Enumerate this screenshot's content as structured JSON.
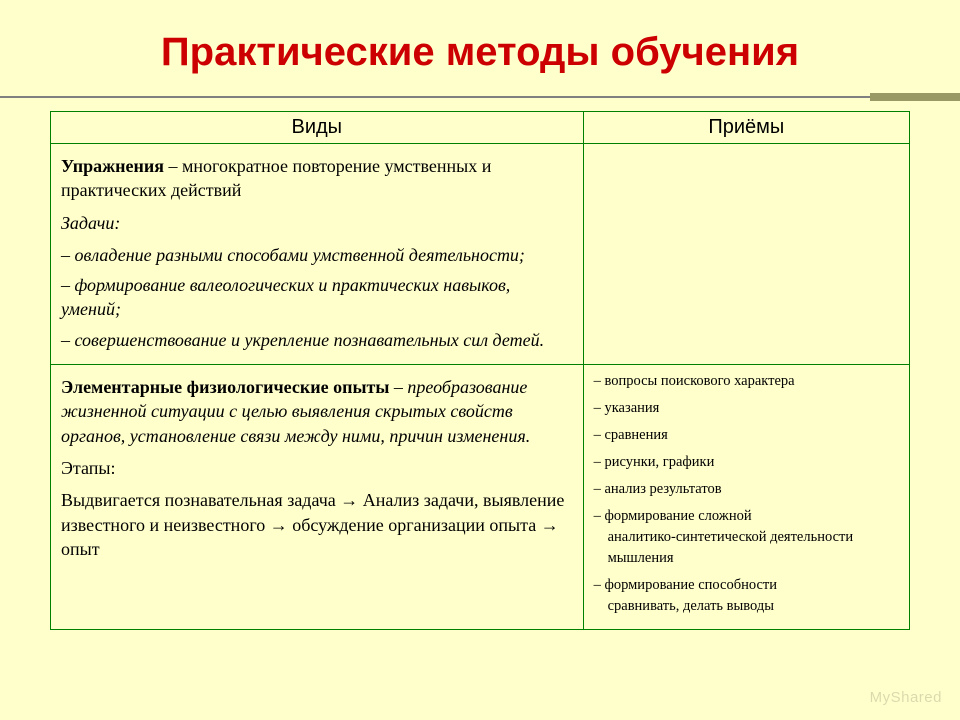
{
  "colors": {
    "background": "#ffffcc",
    "title": "#cc0000",
    "border": "#008000",
    "rule": "#808080",
    "accent": "#999966"
  },
  "title": "Практические методы обучения",
  "headers": {
    "col1": "Виды",
    "col2": "Приёмы"
  },
  "row1": {
    "lead_bold": "Упражнения",
    "lead_rest": " – многократное повторение умственных и практических действий",
    "tasks_label": "Задачи:",
    "t1": "– овладение разными способами умственной деятельности;",
    "t2": "– формирование валеологических и практических навыков, умений;",
    "t3": "– совершенствование и укрепление познавательных сил детей."
  },
  "row2": {
    "lead_bold": "Элементарные физиологические опыты",
    "lead_rest": " – преобразование жизненной ситуации с целью выявления скрытых свойств органов, установление связи между ними, причин изменения.",
    "stages_label": "Этапы:",
    "stages_text": "Выдвигается познавательная задача → Анализ задачи, выявление известного и неизвестного → обсуждение организации опыта → опыт"
  },
  "priemy": {
    "i1": "– вопросы поискового характера",
    "i2": "– указания",
    "i3": "– сравнения",
    "i4": "– рисунки, графики",
    "i5": "– анализ результатов",
    "i6": "– формирование сложной",
    "i6s": "аналитико-синтетической деятельности мышления",
    "i7": "– формирование способности",
    "i7s": "сравнивать, делать выводы"
  },
  "watermark": "MyShared"
}
